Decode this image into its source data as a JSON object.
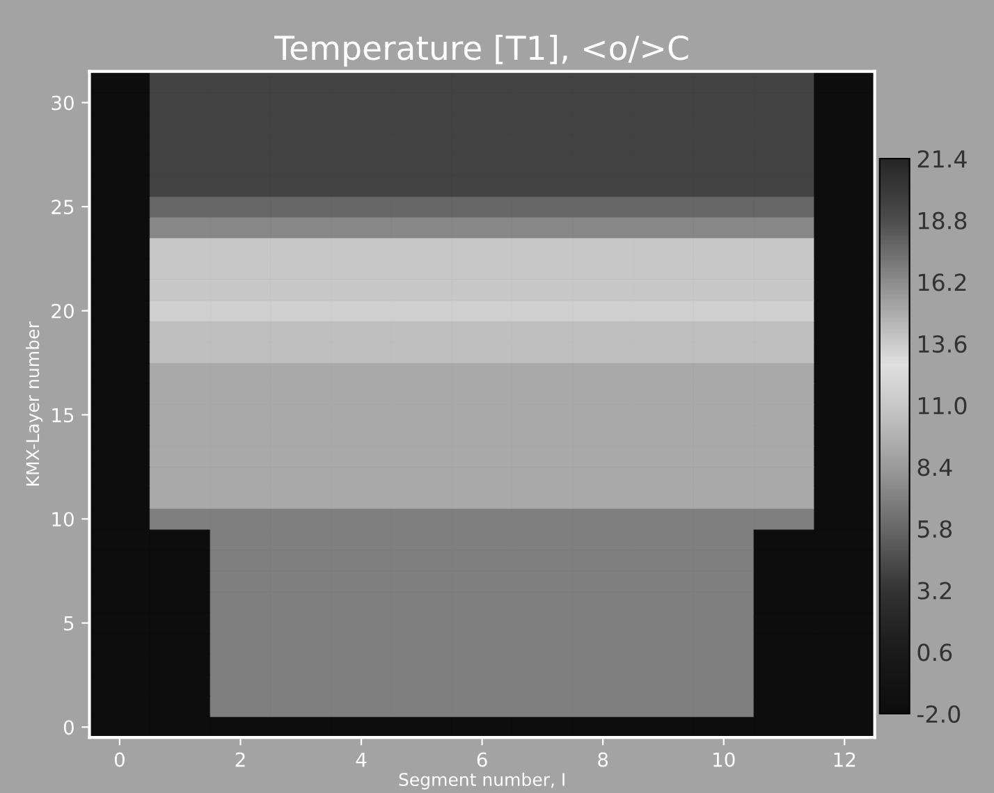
{
  "chart_data": {
    "type": "heatmap",
    "title": "Temperature [T1], <o/>C",
    "xlabel": "Segment number, I",
    "ylabel": "KMX-Layer number",
    "categories": [
      "0",
      null,
      "2",
      null,
      "4",
      null,
      "6",
      null,
      "8",
      null,
      "10",
      null,
      "12"
    ],
    "y_categories": [
      null,
      "30",
      null,
      null,
      null,
      null,
      "25",
      null,
      null,
      null,
      null,
      "20",
      null,
      null,
      null,
      null,
      "15",
      null,
      null,
      null,
      null,
      "10",
      null,
      null,
      null,
      null,
      "5",
      null,
      null,
      null,
      null,
      "0"
    ],
    "cells": [
      [
        -2.0,
        19.5,
        19.5,
        19.5,
        19.5,
        19.5,
        19.5,
        19.5,
        19.5,
        19.5,
        19.5,
        19.5,
        -2.0
      ],
      [
        -2.0,
        19.5,
        19.5,
        19.5,
        19.5,
        19.5,
        19.5,
        19.5,
        19.5,
        19.5,
        19.5,
        19.5,
        -2.0
      ],
      [
        -2.0,
        19.5,
        19.5,
        19.5,
        19.5,
        19.5,
        19.5,
        19.5,
        19.5,
        19.5,
        19.5,
        19.5,
        -2.0
      ],
      [
        -2.0,
        19.5,
        19.5,
        19.5,
        19.5,
        19.5,
        19.5,
        19.5,
        19.5,
        19.5,
        19.5,
        19.5,
        -2.0
      ],
      [
        -2.0,
        19.5,
        19.5,
        19.5,
        19.5,
        19.5,
        19.5,
        19.5,
        19.5,
        19.5,
        19.5,
        19.5,
        -2.0
      ],
      [
        -2.0,
        19.5,
        19.5,
        19.5,
        19.5,
        19.5,
        19.5,
        19.5,
        19.5,
        19.5,
        19.5,
        19.5,
        -2.0
      ],
      [
        -2.0,
        17.8,
        17.8,
        17.8,
        17.8,
        17.8,
        17.8,
        17.8,
        17.8,
        17.8,
        17.8,
        17.8,
        -2.0
      ],
      [
        -2.0,
        16.4,
        16.4,
        16.4,
        16.4,
        16.4,
        16.4,
        16.4,
        16.4,
        16.4,
        16.4,
        16.4,
        -2.0
      ],
      [
        -2.0,
        13.8,
        13.8,
        13.8,
        13.8,
        13.8,
        13.8,
        13.8,
        13.8,
        13.8,
        13.8,
        13.8,
        -2.0
      ],
      [
        -2.0,
        13.8,
        13.8,
        13.8,
        13.8,
        13.8,
        13.8,
        13.8,
        13.8,
        13.8,
        13.8,
        13.8,
        -2.0
      ],
      [
        -2.0,
        13.8,
        13.8,
        13.8,
        13.8,
        13.8,
        13.8,
        13.8,
        13.8,
        13.8,
        13.8,
        13.8,
        -2.0
      ],
      [
        -2.0,
        11.5,
        11.5,
        11.5,
        11.5,
        11.5,
        11.5,
        11.5,
        11.5,
        11.5,
        11.5,
        11.5,
        -2.0
      ],
      [
        -2.0,
        10.5,
        10.5,
        10.5,
        10.5,
        10.5,
        10.5,
        10.5,
        10.5,
        10.5,
        10.5,
        10.5,
        -2.0
      ],
      [
        -2.0,
        10.5,
        10.5,
        10.5,
        10.5,
        10.5,
        10.5,
        10.5,
        10.5,
        10.5,
        10.5,
        10.5,
        -2.0
      ],
      [
        -2.0,
        9.2,
        9.2,
        9.2,
        9.2,
        9.2,
        9.2,
        9.2,
        9.2,
        9.2,
        9.2,
        9.2,
        -2.0
      ],
      [
        -2.0,
        9.2,
        9.2,
        9.2,
        9.2,
        9.2,
        9.2,
        9.2,
        9.2,
        9.2,
        9.2,
        9.2,
        -2.0
      ],
      [
        -2.0,
        9.2,
        9.2,
        9.2,
        9.2,
        9.2,
        9.2,
        9.2,
        9.2,
        9.2,
        9.2,
        9.2,
        -2.0
      ],
      [
        -2.0,
        9.2,
        9.2,
        9.2,
        9.2,
        9.2,
        9.2,
        9.2,
        9.2,
        9.2,
        9.2,
        9.2,
        -2.0
      ],
      [
        -2.0,
        9.2,
        9.2,
        9.2,
        9.2,
        9.2,
        9.2,
        9.2,
        9.2,
        9.2,
        9.2,
        9.2,
        -2.0
      ],
      [
        -2.0,
        9.2,
        9.2,
        9.2,
        9.2,
        9.2,
        9.2,
        9.2,
        9.2,
        9.2,
        9.2,
        9.2,
        -2.0
      ],
      [
        -2.0,
        9.2,
        9.2,
        9.2,
        9.2,
        9.2,
        9.2,
        9.2,
        9.2,
        9.2,
        9.2,
        9.2,
        -2.0
      ],
      [
        -2.0,
        7.0,
        7.0,
        7.0,
        7.0,
        7.0,
        7.0,
        7.0,
        7.0,
        7.0,
        7.0,
        7.0,
        -2.0
      ],
      [
        -2.0,
        -2.0,
        7.0,
        7.0,
        7.0,
        7.0,
        7.0,
        7.0,
        7.0,
        7.0,
        7.0,
        -2.0,
        -2.0
      ],
      [
        -2.0,
        -2.0,
        7.0,
        7.0,
        7.0,
        7.0,
        7.0,
        7.0,
        7.0,
        7.0,
        7.0,
        -2.0,
        -2.0
      ],
      [
        -2.0,
        -2.0,
        7.0,
        7.0,
        7.0,
        7.0,
        7.0,
        7.0,
        7.0,
        7.0,
        7.0,
        -2.0,
        -2.0
      ],
      [
        -2.0,
        -2.0,
        7.0,
        7.0,
        7.0,
        7.0,
        7.0,
        7.0,
        7.0,
        7.0,
        7.0,
        -2.0,
        -2.0
      ],
      [
        -2.0,
        -2.0,
        7.0,
        7.0,
        7.0,
        7.0,
        7.0,
        7.0,
        7.0,
        7.0,
        7.0,
        -2.0,
        -2.0
      ],
      [
        -2.0,
        -2.0,
        7.0,
        7.0,
        7.0,
        7.0,
        7.0,
        7.0,
        7.0,
        7.0,
        7.0,
        -2.0,
        -2.0
      ],
      [
        -2.0,
        -2.0,
        7.0,
        7.0,
        7.0,
        7.0,
        7.0,
        7.0,
        7.0,
        7.0,
        7.0,
        -2.0,
        -2.0
      ],
      [
        -2.0,
        -2.0,
        7.0,
        7.0,
        7.0,
        7.0,
        7.0,
        7.0,
        7.0,
        7.0,
        7.0,
        -2.0,
        -2.0
      ],
      [
        -2.0,
        -2.0,
        7.0,
        7.0,
        7.0,
        7.0,
        7.0,
        7.0,
        7.0,
        7.0,
        7.0,
        -2.0,
        -2.0
      ],
      [
        -2.0,
        -2.0,
        -2.0,
        -2.0,
        -2.0,
        -2.0,
        -2.0,
        -2.0,
        -2.0,
        -2.0,
        -2.0,
        -2.0,
        -2.0
      ]
    ],
    "clim": [
      -2.0,
      21.4
    ],
    "cticks": [
      {
        "value": -2.0,
        "label": "-2.0"
      },
      0.6,
      3.2,
      5.8,
      8.4,
      {
        "value": 11.0,
        "label": "11.0"
      },
      13.6,
      16.2,
      18.8,
      21.4
    ]
  }
}
